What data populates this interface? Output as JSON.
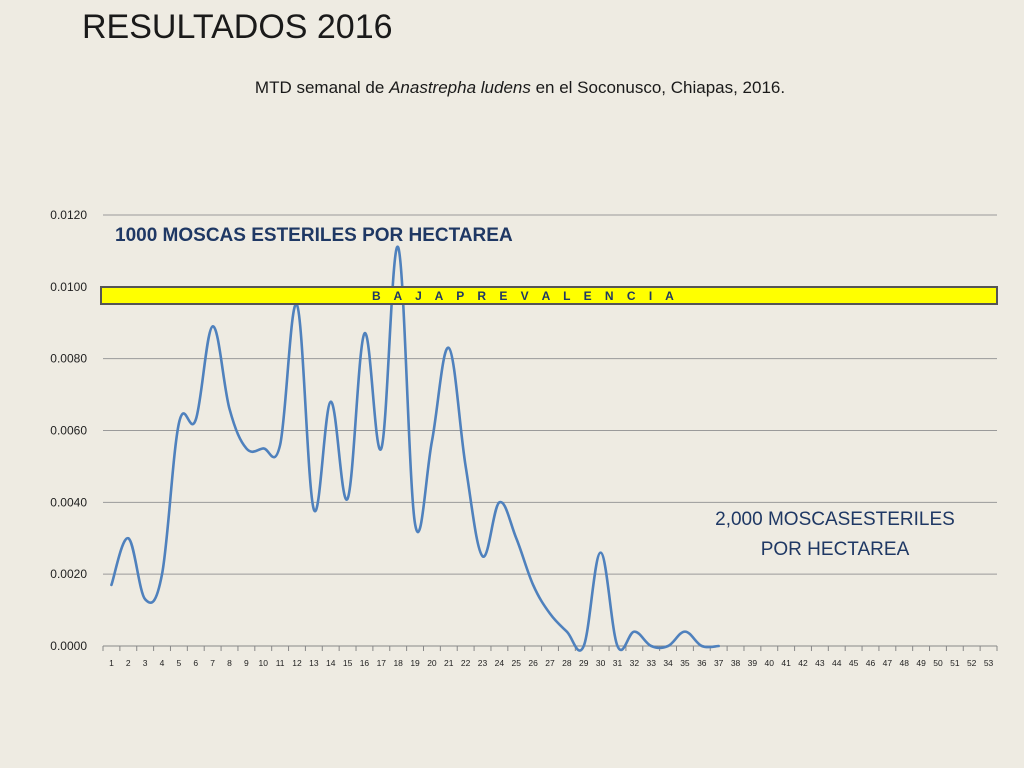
{
  "slide": {
    "title": "RESULTADOS 2016"
  },
  "chart_data": {
    "type": "line",
    "title_prefix": "MTD semanal de ",
    "title_italic": "Anastrepha ludens",
    "title_suffix": " en el Soconusco, Chiapas, 2016.",
    "xlabel": "",
    "ylabel": "",
    "ylim": [
      0,
      0.012
    ],
    "yticks": [
      "0.0000",
      "0.0020",
      "0.0040",
      "0.0060",
      "0.0080",
      "0.0100",
      "0.0120"
    ],
    "ytick_values": [
      0,
      0.002,
      0.004,
      0.006,
      0.008,
      0.01,
      0.012
    ],
    "x": [
      1,
      2,
      3,
      4,
      5,
      6,
      7,
      8,
      9,
      10,
      11,
      12,
      13,
      14,
      15,
      16,
      17,
      18,
      19,
      20,
      21,
      22,
      23,
      24,
      25,
      26,
      27,
      28,
      29,
      30,
      31,
      32,
      33,
      34,
      35,
      36,
      37,
      38,
      39,
      40,
      41,
      42,
      43,
      44,
      45,
      46,
      47,
      48,
      49,
      50,
      51,
      52,
      53
    ],
    "series": [
      {
        "values": [
          0.0017,
          0.003,
          0.0013,
          0.002,
          0.0062,
          0.0063,
          0.0089,
          0.0066,
          0.0055,
          0.0055,
          0.0056,
          0.0095,
          0.0038,
          0.0068,
          0.0041,
          0.0087,
          0.0055,
          0.0111,
          0.0034,
          0.0057,
          0.0083,
          0.005,
          0.0025,
          0.004,
          0.003,
          0.0017,
          0.0009,
          0.0004,
          0.0,
          0.0026,
          0.0,
          0.0004,
          0.0,
          0.0,
          0.0004,
          0.0,
          0.0,
          null,
          null,
          null,
          null,
          null,
          null,
          null,
          null,
          null,
          null,
          null,
          null,
          null,
          null,
          null,
          null
        ],
        "color": "#4f81bd"
      }
    ],
    "grid": true,
    "annotations": {
      "top_text": "1000 MOSCAS ESTERILES POR HECTAREA",
      "banner_text": "B A J A   P R E V A L E N C I A",
      "banner_color": "#ffff00",
      "bottom_line1": "2,000 MOSCASESTERILES",
      "bottom_line2": "POR HECTAREA"
    }
  }
}
